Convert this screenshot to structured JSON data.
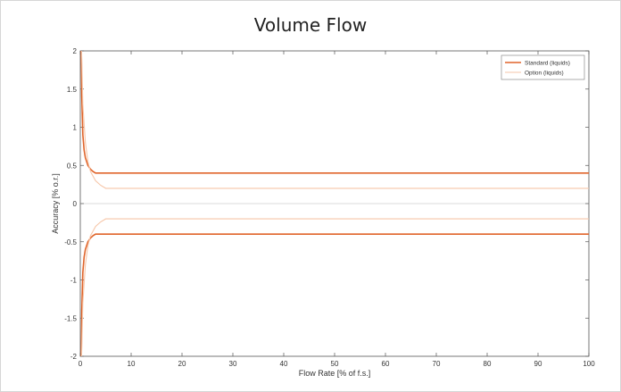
{
  "chart_data": {
    "type": "line",
    "title": "Volume Flow",
    "xlabel": "Flow Rate [% of f.s.]",
    "ylabel": "Accuracy [% o.r.]",
    "xlim": [
      0,
      100
    ],
    "ylim": [
      -2,
      2
    ],
    "xticks": [
      0,
      10,
      20,
      30,
      40,
      50,
      60,
      70,
      80,
      90,
      100
    ],
    "yticks": [
      2,
      1.5,
      1,
      0.5,
      0,
      -0.5,
      -1,
      -1.5,
      -2
    ],
    "ytick_labels": [
      "2",
      "1.5",
      "1",
      "0.5",
      "0",
      "-0.5",
      "-1",
      "-1.5",
      "-2"
    ],
    "grid": false,
    "legend_position": "top-right",
    "series": [
      {
        "name": "Standard (liquids)",
        "color": "#e0642a",
        "x": [
          0.2,
          0.3,
          0.5,
          0.75,
          1,
          1.5,
          2,
          2.5,
          3,
          100
        ],
        "y_upper": [
          2,
          1.4,
          0.9,
          0.7,
          0.6,
          0.5,
          0.45,
          0.42,
          0.4,
          0.4
        ],
        "y_lower": [
          -2,
          -1.4,
          -0.9,
          -0.7,
          -0.6,
          -0.5,
          -0.45,
          -0.42,
          -0.4,
          -0.4
        ]
      },
      {
        "name": "Option (liquids)",
        "color": "#f6c6a8",
        "x": [
          0.25,
          0.5,
          1,
          1.5,
          2,
          3,
          4,
          5,
          100
        ],
        "y_upper": [
          2,
          1.3,
          0.8,
          0.55,
          0.42,
          0.3,
          0.24,
          0.2,
          0.2
        ],
        "y_lower": [
          -2,
          -1.3,
          -0.8,
          -0.55,
          -0.42,
          -0.3,
          -0.24,
          -0.2,
          -0.2
        ]
      }
    ]
  }
}
